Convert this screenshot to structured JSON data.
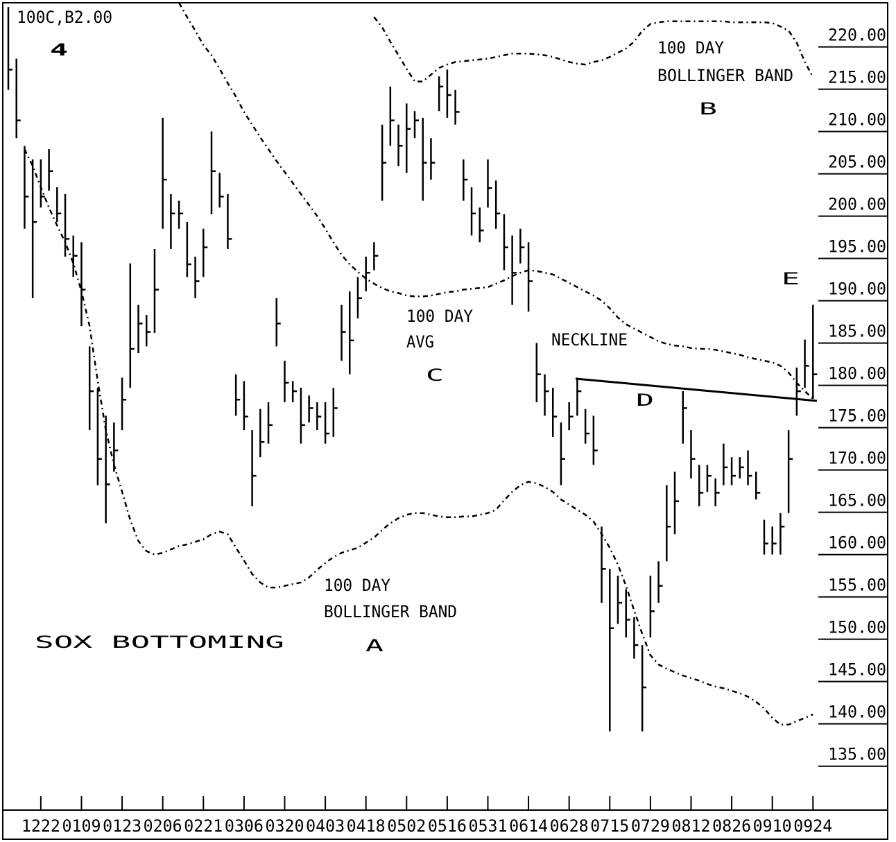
{
  "chart_data": {
    "type": "ohlc",
    "color": "#000000",
    "categories": [
      null,
      null,
      null,
      null,
      "1222",
      null,
      null,
      null,
      null,
      "0109",
      null,
      null,
      null,
      null,
      "0123",
      null,
      null,
      null,
      null,
      "0206",
      null,
      null,
      null,
      null,
      "0221",
      null,
      null,
      null,
      null,
      "0306",
      null,
      null,
      null,
      null,
      "0320",
      null,
      null,
      null,
      null,
      "0403",
      null,
      null,
      null,
      null,
      "0418",
      null,
      null,
      null,
      null,
      "0502",
      null,
      null,
      null,
      null,
      "0516",
      null,
      null,
      null,
      null,
      "0531",
      null,
      null,
      null,
      null,
      "0614",
      null,
      null,
      null,
      null,
      "0628",
      null,
      null,
      null,
      null,
      "0715",
      null,
      null,
      null,
      null,
      "0729",
      null,
      null,
      null,
      null,
      "0812",
      null,
      null,
      null,
      null,
      "0826",
      null,
      null,
      null,
      null,
      "0910",
      null,
      null,
      null,
      null,
      "0924"
    ],
    "high": [
      223.4,
      217.3,
      207,
      205.4,
      205.4,
      206.6,
      202.1,
      201.3,
      196.4,
      195.6,
      183.3,
      178.4,
      175.1,
      174.3,
      179.6,
      193.1,
      188.2,
      187,
      194.8,
      210.3,
      201.3,
      200.5,
      198,
      193.9,
      197.2,
      208.7,
      203.8,
      201.3,
      180,
      179.2,
      173.4,
      175.9,
      176.7,
      189,
      181.6,
      179.2,
      178.4,
      177.5,
      176.7,
      176.7,
      178.4,
      188.2,
      189.8,
      191.5,
      193.9,
      195.6,
      209.5,
      214,
      209.5,
      212,
      211.1,
      210.3,
      207.9,
      215.2,
      216,
      213.6,
      205.4,
      202.1,
      199.7,
      205.4,
      202.9,
      198.9,
      196.4,
      197.2,
      195.6,
      183.7,
      180,
      178.4,
      174.3,
      176.7,
      179.6,
      175.9,
      175.1,
      162,
      157,
      156.2,
      154.6,
      151.3,
      148,
      156.2,
      157.9,
      166.9,
      168.5,
      178,
      173.4,
      169.3,
      169.3,
      167.7,
      171.8,
      170.2,
      170.2,
      171,
      168.5,
      162.8,
      162,
      163.6,
      173.4,
      180.8,
      184.1,
      188.2
    ],
    "low": [
      213.6,
      207.9,
      197.2,
      189,
      199.7,
      201.7,
      198,
      193.9,
      191.5,
      185.7,
      173.4,
      166.9,
      162.4,
      168.5,
      173.4,
      178.4,
      182.5,
      183.3,
      184.9,
      197.2,
      194.8,
      197.2,
      191.5,
      189,
      191.5,
      198.9,
      199.7,
      194.8,
      175.1,
      173.4,
      164.4,
      170.2,
      171.8,
      183.3,
      176.7,
      176.7,
      171.8,
      174.3,
      173.4,
      171.8,
      172.6,
      181.6,
      180,
      186.6,
      189.8,
      192.3,
      200.5,
      207,
      204.6,
      203.8,
      207.9,
      200.5,
      203,
      211.1,
      210.3,
      209.5,
      200.5,
      196.4,
      195.6,
      199.7,
      197.2,
      192.3,
      188.2,
      193.1,
      187.4,
      176.7,
      175.1,
      172.6,
      166.9,
      173.4,
      175.1,
      171.8,
      169.3,
      153,
      137.8,
      150.5,
      148.9,
      146.4,
      137.8,
      148.9,
      153,
      157.9,
      161.1,
      171.8,
      167.7,
      164.4,
      166.1,
      164.4,
      166.9,
      166.9,
      167.7,
      166.9,
      165.2,
      158.7,
      158.7,
      158.7,
      163.6,
      175.1,
      178.4,
      177.1
    ],
    "close": [
      216,
      210,
      201,
      198,
      201,
      204,
      199,
      196,
      194,
      190,
      178,
      170,
      167,
      171,
      177,
      183,
      186,
      185,
      190,
      203,
      199,
      199,
      193,
      191,
      195,
      204,
      201,
      196,
      177,
      175,
      168,
      172,
      174,
      186,
      179,
      178,
      174,
      176,
      175,
      173,
      176,
      185,
      184,
      189,
      192,
      194,
      205,
      210,
      207,
      209,
      210,
      205,
      205,
      214,
      213,
      211,
      203,
      199,
      197,
      202,
      199,
      195,
      192,
      195,
      191,
      180,
      178,
      175,
      170,
      175,
      178,
      173,
      171,
      157,
      150,
      153,
      151,
      148,
      143,
      152,
      155,
      162,
      165,
      176,
      170,
      166,
      168,
      166,
      169,
      168,
      169,
      168,
      166,
      160,
      160,
      162,
      170,
      178,
      181,
      180
    ],
    "lines": [
      {
        "color": "#000000",
        "values": [
          null,
          null,
          null,
          null,
          null,
          null,
          null,
          null,
          null,
          null,
          null,
          null,
          null,
          null,
          null,
          null,
          null,
          null,
          null,
          null,
          null,
          null,
          null,
          null,
          null,
          null,
          null,
          null,
          null,
          null,
          null,
          null,
          null,
          null,
          null,
          null,
          null,
          null,
          null,
          null,
          null,
          null,
          null,
          null,
          null,
          222.2,
          221,
          219.3,
          217.7,
          216.1,
          214.6,
          214.6,
          215.4,
          216.2,
          216.6,
          216.9,
          217,
          217.1,
          217.2,
          217.3,
          217.5,
          217.7,
          217.9,
          217.9,
          217.9,
          217.8,
          217.7,
          217.5,
          217.2,
          216.9,
          216.7,
          216.6,
          216.9,
          217.1,
          217.5,
          218,
          218.5,
          219.3,
          220.6,
          221.4,
          221.6,
          221.7,
          221.7,
          221.7,
          221.7,
          221.7,
          221.7,
          221.7,
          221.7,
          221.6,
          221.6,
          221.6,
          221.6,
          221.6,
          221.5,
          221.1,
          220.6,
          219.2,
          216.9,
          215.1
        ]
      },
      {
        "color": "#000000",
        "values": [
          null,
          null,
          null,
          null,
          null,
          null,
          null,
          null,
          null,
          null,
          null,
          null,
          null,
          null,
          null,
          null,
          null,
          null,
          null,
          null,
          null,
          223.9,
          222.2,
          220.6,
          218.9,
          217.7,
          216.1,
          214.4,
          212.8,
          211,
          209.5,
          208,
          206.6,
          205.2,
          203.9,
          202.6,
          201.3,
          200,
          198.7,
          197.2,
          195.6,
          194.1,
          193,
          192.1,
          191.3,
          190.7,
          190.2,
          189.8,
          189.6,
          189.3,
          189.2,
          189.2,
          189.3,
          189.5,
          189.7,
          189.8,
          190,
          190.1,
          190.2,
          190.3,
          190.7,
          191.1,
          191.6,
          192,
          192.3,
          192.2,
          192,
          191.8,
          191.3,
          190.8,
          190.3,
          189.8,
          189.3,
          188.7,
          187.8,
          186.7,
          185.9,
          185.4,
          184.9,
          184.4,
          183.9,
          183.6,
          183.4,
          183.3,
          183.1,
          183,
          183,
          182.9,
          182.7,
          182.5,
          182.3,
          182,
          181.8,
          181.6,
          181.4,
          181,
          180.2,
          179,
          178,
          177.1
        ]
      },
      {
        "color": "#000000",
        "values": [
          null,
          null,
          206.6,
          204.6,
          202.1,
          199.7,
          197.6,
          195.6,
          193.1,
          189.8,
          185.7,
          179.2,
          173.4,
          169.3,
          166.1,
          162.8,
          160.3,
          159.1,
          158.7,
          158.9,
          159.3,
          159.7,
          159.9,
          160.2,
          160.5,
          161.1,
          161.4,
          161.1,
          159.5,
          158,
          156.4,
          155.4,
          154.8,
          154.8,
          155,
          155.2,
          155.4,
          156,
          156.9,
          157.7,
          158.4,
          158.9,
          159.2,
          159.5,
          160.1,
          160.7,
          161.6,
          162.4,
          163,
          163.4,
          163.6,
          163.6,
          163.4,
          163.2,
          163.1,
          163.1,
          163.2,
          163.2,
          163.4,
          163.6,
          164,
          165.1,
          166.1,
          166.9,
          167.3,
          167.1,
          166.7,
          166.1,
          165.2,
          164.6,
          164,
          163.4,
          162.6,
          161.1,
          159.5,
          157.5,
          155,
          152.1,
          149.3,
          146.8,
          145.7,
          145.2,
          144.8,
          144.4,
          144.1,
          143.8,
          143.4,
          143.1,
          142.9,
          142.6,
          142.3,
          141.9,
          141.3,
          140.5,
          139.4,
          138.6,
          138.6,
          139,
          139.4,
          139.8
        ]
      }
    ],
    "ylim": [
      128.5,
      223.9
    ],
    "yticks": [
      {
        "value": 220,
        "label": "220.00"
      },
      {
        "value": 215,
        "label": "215.00"
      },
      {
        "value": 210,
        "label": "210.00"
      },
      {
        "value": 205,
        "label": "205.00"
      },
      {
        "value": 200,
        "label": "200.00"
      },
      {
        "value": 195,
        "label": "195.00"
      },
      {
        "value": 190,
        "label": "190.00"
      },
      {
        "value": 185,
        "label": "185.00"
      },
      {
        "value": 180,
        "label": "180.00"
      },
      {
        "value": 175,
        "label": "175.00"
      },
      {
        "value": 170,
        "label": "170.00"
      },
      {
        "value": 165,
        "label": "165.00"
      },
      {
        "value": 160,
        "label": "160.00"
      },
      {
        "value": 155,
        "label": "155.00"
      },
      {
        "value": 150,
        "label": "150.00"
      },
      {
        "value": 145,
        "label": "145.00"
      },
      {
        "value": 140,
        "label": "140.00"
      },
      {
        "value": 135,
        "label": "135.00"
      }
    ],
    "annotations": [
      "100C,B2.00",
      "4",
      "100 DAY",
      "BOLLINGER BAND",
      "B",
      "100 DAY",
      "AVG",
      "C",
      "NECKLINE",
      "D",
      "E",
      "100 DAY",
      "BOLLINGER BAND",
      "A",
      "SOX BOTTOMING"
    ]
  }
}
